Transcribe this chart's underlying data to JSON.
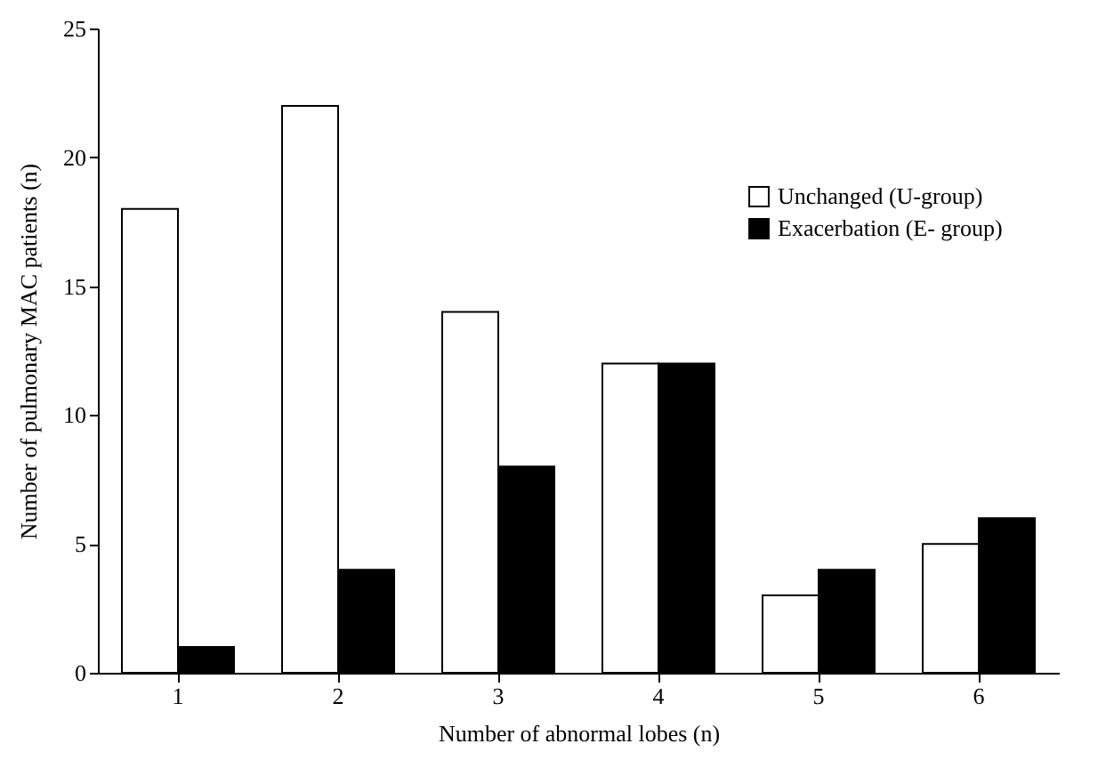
{
  "chart_data": {
    "type": "bar",
    "xlabel": "Number of abnormal lobes (n)",
    "ylabel": "Number of pulmonary MAC patients  (n)",
    "categories": [
      "1",
      "2",
      "3",
      "4",
      "5",
      "6"
    ],
    "series": [
      {
        "name": "Unchanged (U-group)",
        "color": "#ffffff",
        "values": [
          18,
          22,
          14,
          12,
          3,
          5
        ]
      },
      {
        "name": "Exacerbation (E- group)",
        "color": "#000000",
        "values": [
          1,
          4,
          8,
          12,
          4,
          6
        ]
      }
    ],
    "ylim": [
      0,
      25
    ],
    "yticks": [
      0,
      5,
      10,
      15,
      20,
      25
    ],
    "legend": "top right"
  }
}
